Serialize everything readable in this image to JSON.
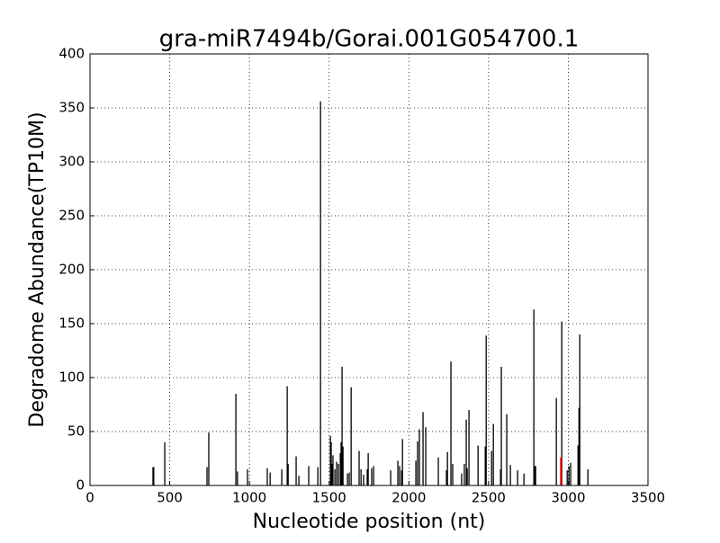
{
  "chart_data": {
    "type": "stem",
    "title": "gra-miR7494b/Gorai.001G054700.1",
    "x_label": "Nucleotide position (nt)",
    "y_label": "Degradome Abundance(TP10M)",
    "xlim": [
      0,
      3500
    ],
    "xticks": [
      0,
      500,
      1000,
      1500,
      2000,
      2500,
      3000,
      3500
    ],
    "ylim": [
      0,
      400
    ],
    "yticks": [
      0,
      50,
      100,
      150,
      200,
      250,
      300,
      350,
      400
    ],
    "grid": true,
    "series": [
      {
        "color": "#000000",
        "x": [
          395,
          400,
          469,
          734,
          745,
          915,
          925,
          988,
          1112,
          1130,
          1203,
          1237,
          1243,
          1293,
          1310,
          1372,
          1429,
          1446,
          1508,
          1513,
          1519,
          1524,
          1536,
          1547,
          1558,
          1570,
          1575,
          1581,
          1587,
          1615,
          1626,
          1638,
          1688,
          1700,
          1716,
          1739,
          1745,
          1767,
          1779,
          1886,
          1931,
          1942,
          1954,
          1960,
          2044,
          2055,
          2066,
          2089,
          2106,
          2185,
          2236,
          2242,
          2264,
          2275,
          2331,
          2348,
          2360,
          2366,
          2377,
          2434,
          2479,
          2485,
          2519,
          2530,
          2575,
          2580,
          2614,
          2637,
          2682,
          2722,
          2784,
          2790,
          2795,
          2925,
          2959,
          2993,
          3004,
          3015,
          3061,
          3067,
          3072,
          3123
        ],
        "values": [
          17,
          17,
          40,
          17,
          49,
          85,
          13,
          15,
          16,
          12,
          15,
          92,
          20,
          27,
          9,
          18,
          17,
          356,
          46,
          40,
          20,
          28,
          15,
          22,
          20,
          30,
          40,
          110,
          36,
          11,
          12,
          91,
          32,
          15,
          10,
          15,
          30,
          16,
          18,
          14,
          23,
          18,
          14,
          43,
          23,
          41,
          52,
          68,
          54,
          26,
          14,
          31,
          115,
          20,
          11,
          20,
          61,
          16,
          70,
          37,
          36,
          139,
          32,
          57,
          15,
          110,
          66,
          19,
          14,
          11,
          163,
          18,
          18,
          81,
          152,
          14,
          18,
          21,
          37,
          72,
          140,
          15
        ]
      },
      {
        "color": "#ff0000",
        "x": [
          2954
        ],
        "values": [
          26
        ]
      }
    ]
  }
}
